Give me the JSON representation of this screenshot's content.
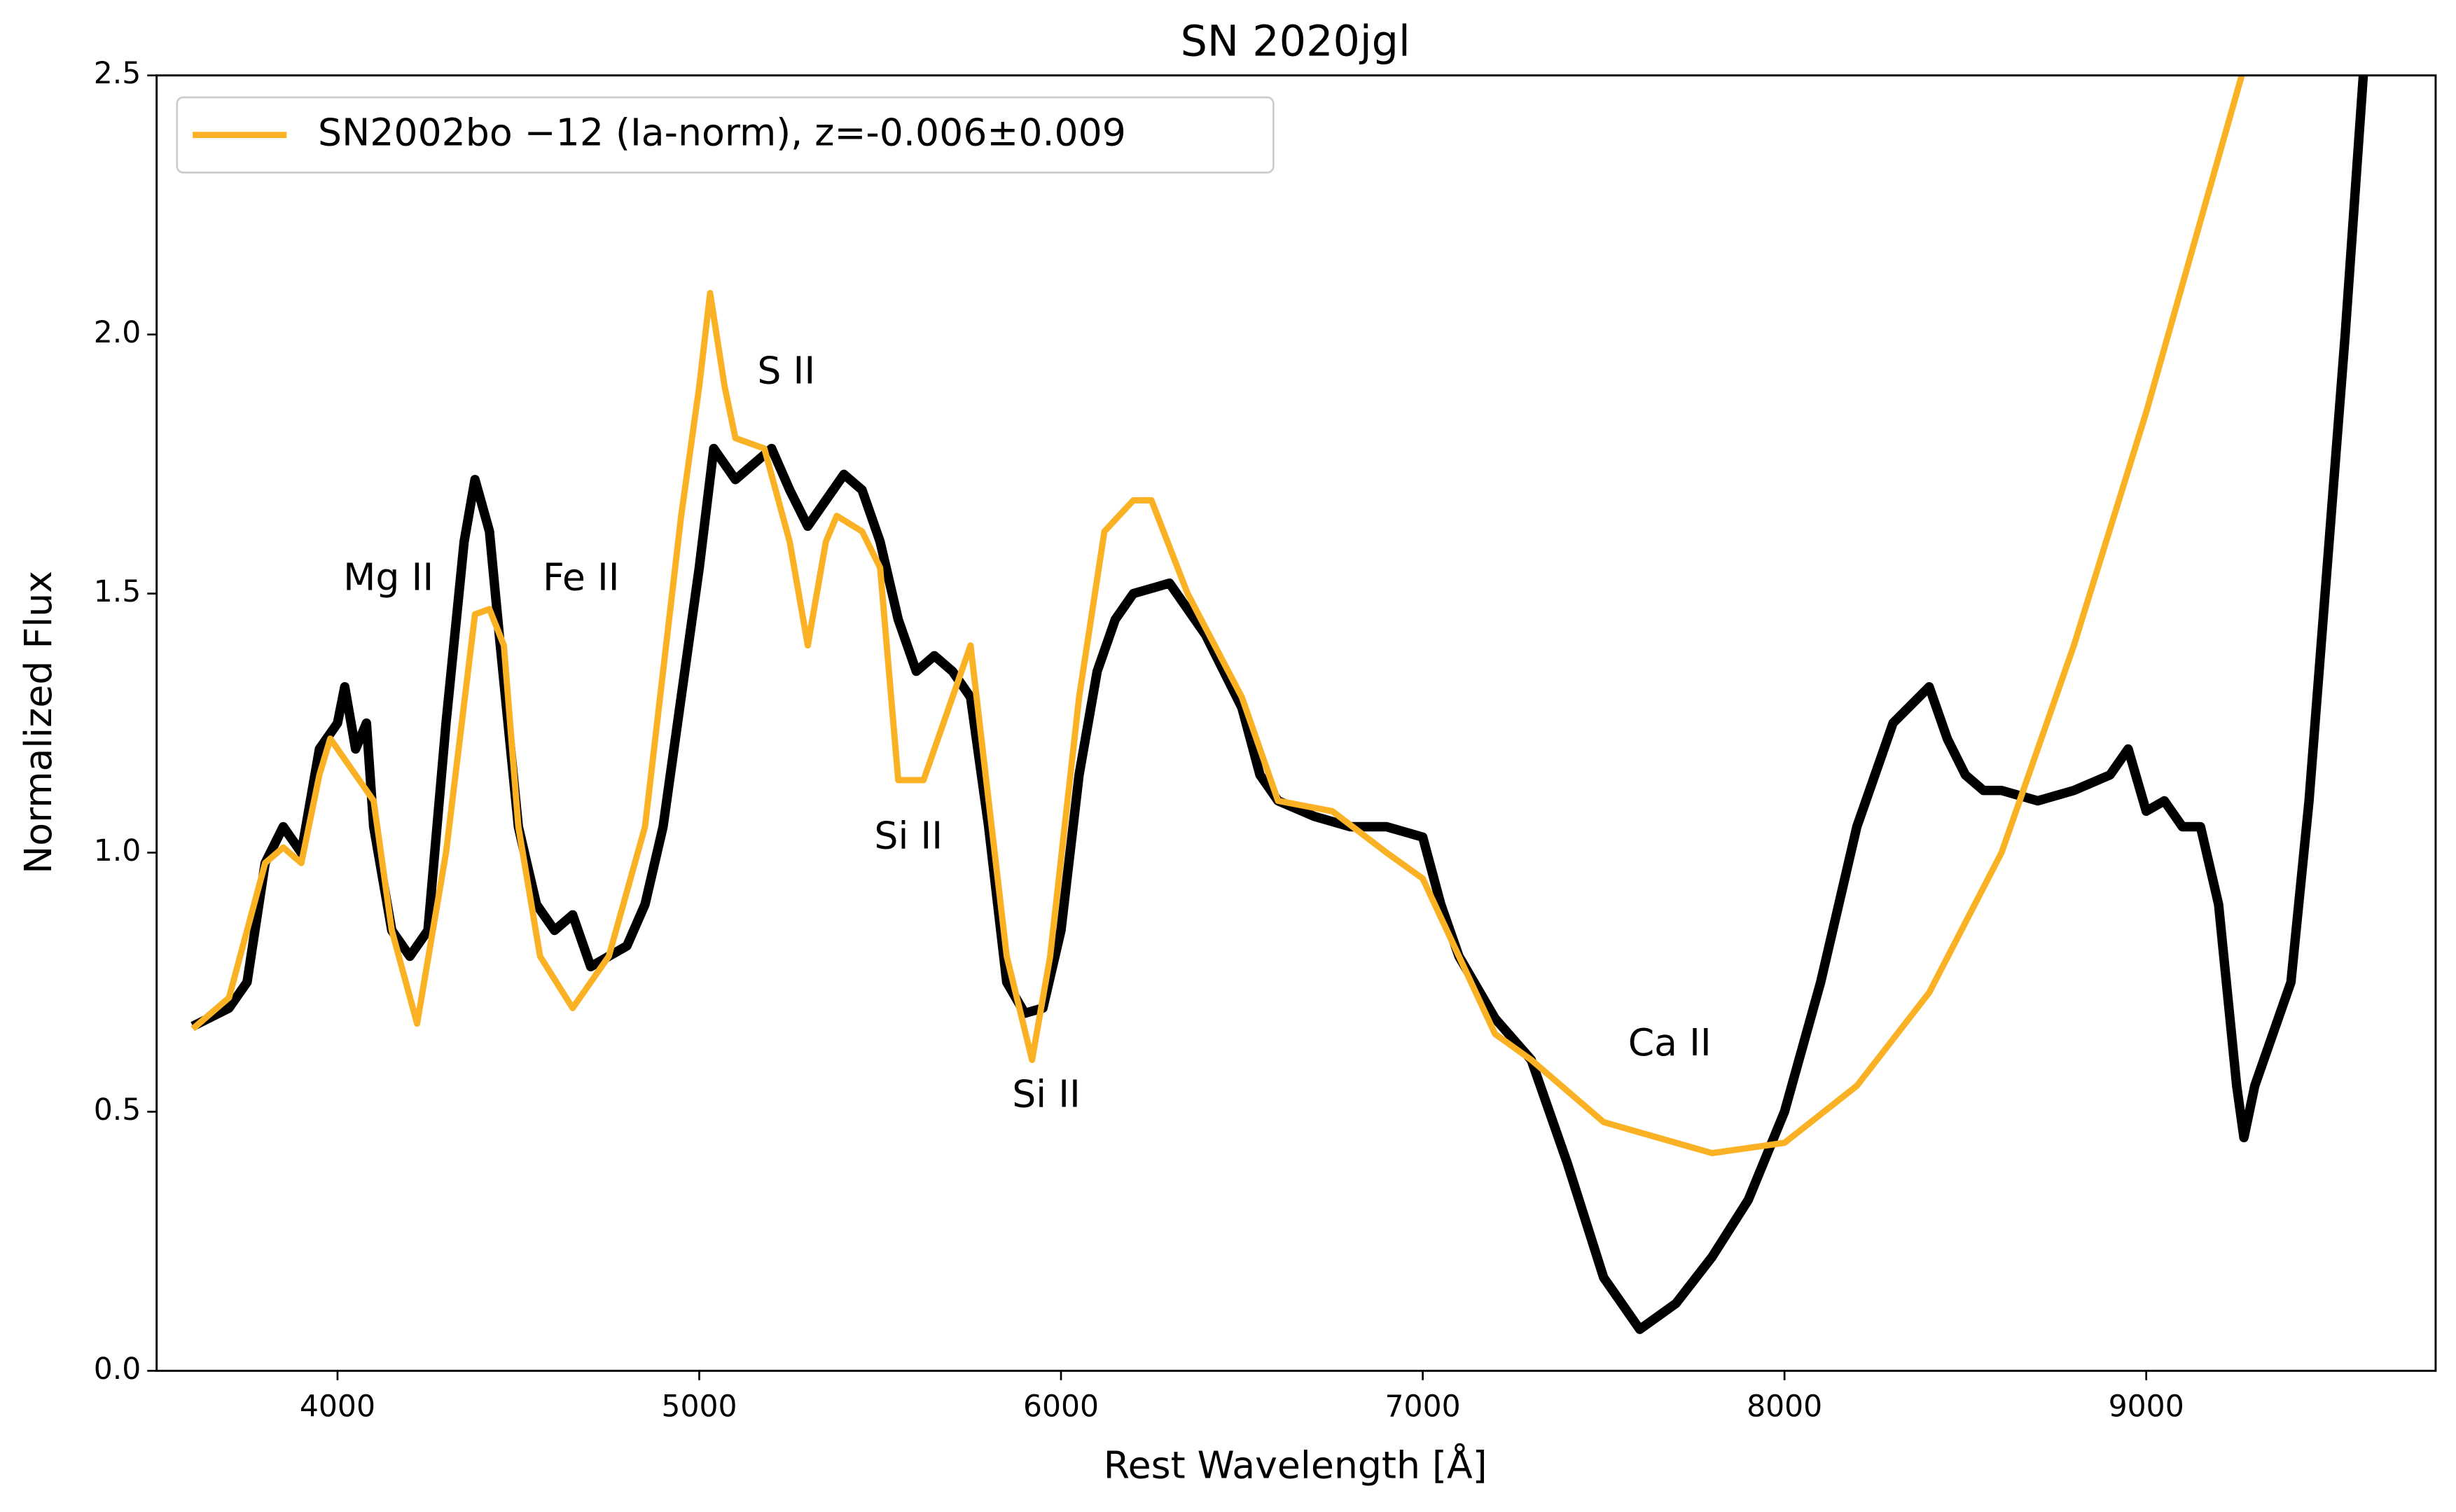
{
  "chart_data": {
    "type": "line",
    "title": "SN 2020jgl",
    "x_label": "Rest Wavelength [Å]",
    "y_label": "Normalized Flux",
    "xlim": [
      3500,
      9800
    ],
    "ylim": [
      0,
      2.5
    ],
    "xticks": [
      4000,
      5000,
      6000,
      7000,
      8000,
      9000
    ],
    "yticks": [
      {
        "value": 0,
        "label": "0.0"
      },
      0.5,
      {
        "value": 1,
        "label": "1.0"
      },
      1.5,
      {
        "value": 2,
        "label": "2.0"
      },
      2.5
    ],
    "grid": false,
    "legend": "upper left",
    "annotations": [
      "Mg II",
      "Fe II",
      "S II",
      "Si II",
      "Si II",
      "Ca II"
    ],
    "series": [
      {
        "color": "#000000",
        "x": [
          3600,
          3700,
          3750,
          3800,
          3850,
          3900,
          3950,
          4000,
          4020,
          4050,
          4080,
          4100,
          4150,
          4200,
          4250,
          4300,
          4350,
          4380,
          4420,
          4450,
          4500,
          4550,
          4600,
          4650,
          4700,
          4750,
          4800,
          4850,
          4900,
          4950,
          5000,
          5040,
          5100,
          5150,
          5200,
          5250,
          5300,
          5350,
          5400,
          5450,
          5500,
          5550,
          5600,
          5650,
          5700,
          5750,
          5800,
          5850,
          5900,
          5950,
          6000,
          6050,
          6100,
          6150,
          6200,
          6300,
          6400,
          6500,
          6550,
          6600,
          6700,
          6800,
          6900,
          7000,
          7050,
          7100,
          7200,
          7300,
          7400,
          7500,
          7600,
          7700,
          7800,
          7900,
          8000,
          8100,
          8200,
          8300,
          8400,
          8450,
          8500,
          8550,
          8600,
          8700,
          8800,
          8900,
          8950,
          9000,
          9050,
          9100,
          9150,
          9200,
          9250,
          9270,
          9300,
          9350,
          9400,
          9450,
          9500,
          9550,
          9600
        ],
        "values": [
          0.665,
          0.7,
          0.75,
          0.98,
          1.05,
          1.0,
          1.2,
          1.25,
          1.32,
          1.2,
          1.25,
          1.05,
          0.85,
          0.8,
          0.85,
          1.25,
          1.6,
          1.72,
          1.62,
          1.4,
          1.05,
          0.9,
          0.85,
          0.88,
          0.78,
          0.8,
          0.82,
          0.9,
          1.05,
          1.3,
          1.55,
          1.78,
          1.72,
          1.75,
          1.78,
          1.7,
          1.63,
          1.68,
          1.73,
          1.7,
          1.6,
          1.45,
          1.35,
          1.38,
          1.35,
          1.3,
          1.05,
          0.75,
          0.69,
          0.7,
          0.85,
          1.15,
          1.35,
          1.45,
          1.5,
          1.52,
          1.42,
          1.28,
          1.15,
          1.1,
          1.07,
          1.05,
          1.05,
          1.03,
          0.9,
          0.8,
          0.68,
          0.6,
          0.4,
          0.18,
          0.08,
          0.13,
          0.22,
          0.33,
          0.5,
          0.75,
          1.05,
          1.25,
          1.32,
          1.22,
          1.15,
          1.12,
          1.12,
          1.1,
          1.12,
          1.15,
          1.2,
          1.08,
          1.1,
          1.05,
          1.05,
          0.9,
          0.55,
          0.45,
          0.55,
          0.65,
          0.75,
          1.1,
          1.55,
          2.0,
          2.5
        ]
      },
      {
        "name": "SN2002bo −12 (Ia-norm), z=-0.006±0.009",
        "color": "#fbb124",
        "x": [
          3600,
          3700,
          3800,
          3850,
          3900,
          3950,
          3980,
          4050,
          4100,
          4150,
          4220,
          4300,
          4380,
          4420,
          4460,
          4500,
          4560,
          4650,
          4750,
          4850,
          4950,
          5000,
          5030,
          5070,
          5100,
          5180,
          5250,
          5300,
          5350,
          5380,
          5450,
          5500,
          5550,
          5620,
          5700,
          5750,
          5800,
          5850,
          5920,
          5970,
          6050,
          6120,
          6200,
          6250,
          6350,
          6500,
          6600,
          6750,
          6900,
          7000,
          7100,
          7200,
          7300,
          7500,
          7800,
          8000,
          8200,
          8400,
          8600,
          8800,
          9000,
          9264
        ],
        "values": [
          0.66,
          0.72,
          0.98,
          1.01,
          0.98,
          1.15,
          1.22,
          1.15,
          1.1,
          0.85,
          0.67,
          1.0,
          1.46,
          1.47,
          1.4,
          1.05,
          0.8,
          0.7,
          0.8,
          1.05,
          1.65,
          1.9,
          2.08,
          1.9,
          1.8,
          1.78,
          1.6,
          1.4,
          1.6,
          1.65,
          1.62,
          1.55,
          1.14,
          1.14,
          1.3,
          1.4,
          1.1,
          0.8,
          0.6,
          0.8,
          1.3,
          1.62,
          1.68,
          1.68,
          1.5,
          1.3,
          1.1,
          1.08,
          1.0,
          0.95,
          0.8,
          0.65,
          0.6,
          0.48,
          0.42,
          0.44,
          0.55,
          0.73,
          1.0,
          1.4,
          1.85,
          2.5
        ]
      }
    ]
  }
}
